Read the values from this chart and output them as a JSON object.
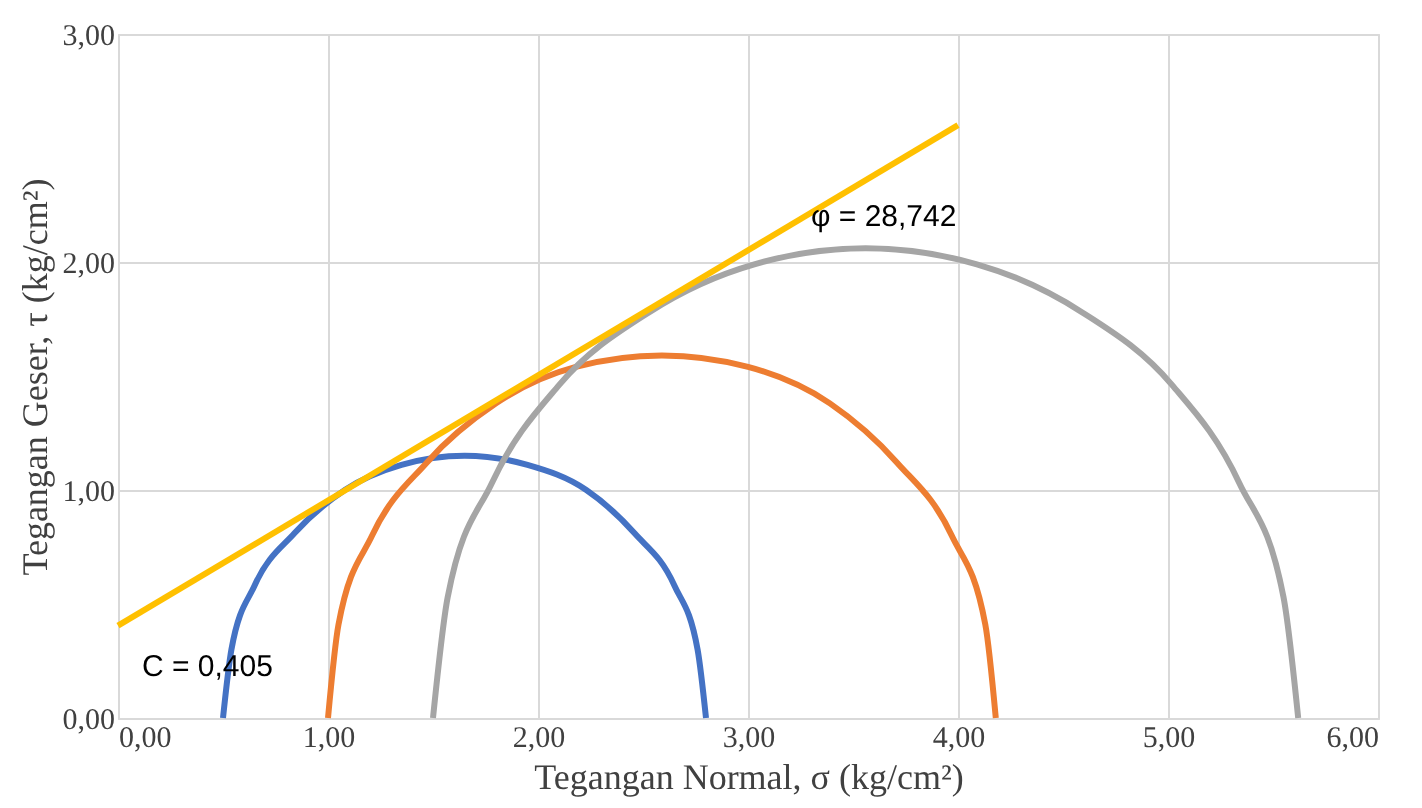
{
  "chart_data": {
    "type": "line",
    "xlabel": "Tegangan Normal, σ (kg/cm²)",
    "ylabel": "Tegangan Geser, τ (kg/cm²)",
    "series": [
      {
        "color": "#4472c4",
        "x": [
          0.5,
          0.54,
          0.65,
          0.84,
          1.08,
          1.35,
          1.65,
          1.95,
          2.23,
          2.46,
          2.65,
          2.76,
          2.8
        ],
        "values": [
          0,
          0.3,
          0.58,
          0.81,
          1.0,
          1.11,
          1.15,
          1.11,
          1.0,
          0.81,
          0.58,
          0.3,
          0
        ]
      },
      {
        "color": "#ed7d31",
        "x": [
          1.0,
          1.05,
          1.21,
          1.47,
          1.8,
          2.18,
          2.59,
          3.0,
          3.39,
          3.71,
          3.97,
          4.13,
          4.18
        ],
        "values": [
          0,
          0.41,
          0.8,
          1.12,
          1.38,
          1.54,
          1.59,
          1.54,
          1.38,
          1.12,
          0.8,
          0.41,
          0
        ]
      },
      {
        "color": "#a5a5a5",
        "x": [
          1.5,
          1.57,
          1.78,
          2.1,
          2.53,
          3.03,
          3.56,
          4.09,
          4.59,
          5.02,
          5.34,
          5.55,
          5.62
        ],
        "values": [
          0,
          0.53,
          1.03,
          1.46,
          1.78,
          1.99,
          2.06,
          1.99,
          1.78,
          1.46,
          1.03,
          0.53,
          0
        ]
      },
      {
        "color": "#ffc000",
        "x": [
          0,
          4
        ],
        "values": [
          0.405,
          2.6
        ]
      }
    ],
    "annotations": [
      {
        "text": "φ = 28,742",
        "x": 3.3,
        "y": 2.2
      },
      {
        "text": "C = 0,405",
        "x": 0,
        "y": 0.405
      }
    ],
    "xlim": [
      0,
      6
    ],
    "xticks": [
      {
        "value": 0,
        "label": "0,00"
      },
      {
        "value": 1,
        "label": "1,00"
      },
      {
        "value": 2,
        "label": "2,00"
      },
      {
        "value": 3,
        "label": "3,00"
      },
      {
        "value": 4,
        "label": "4,00"
      },
      {
        "value": 5,
        "label": "5,00"
      },
      {
        "value": 6,
        "label": "6,00"
      }
    ],
    "ylim": [
      0,
      3
    ],
    "yticks": [
      {
        "value": 0,
        "label": "0,00"
      },
      {
        "value": 1,
        "label": "1,00"
      },
      {
        "value": 2,
        "label": "2,00"
      },
      {
        "value": 3,
        "label": "3,00"
      }
    ],
    "grid": true,
    "marker": "none"
  }
}
